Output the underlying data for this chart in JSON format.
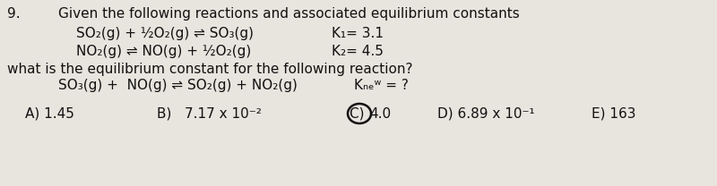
{
  "question_number": "9.",
  "header": "Given the following reactions and associated equilibrium constants",
  "reaction1": "SO₂(g) + ½O₂(g) ⇌ SO₃(g)",
  "k1": "K₁= 3.1",
  "reaction2": "NO₂(g) ⇌ NO(g) + ½O₂(g)",
  "k2": "K₂= 4.5",
  "question": "what is the equilibrium constant for the following reaction?",
  "reaction_new": "SO₃(g) +  NO(g) ⇌ SO₂(g) + NO₂(g)",
  "k_new": "Kₙₑʷ = ?",
  "answer_a": "A) 1.45",
  "answer_b": "B)   7.17 x 10⁻²",
  "answer_c": "C) ",
  "answer_c2": "4.0",
  "answer_d": "D) 6.89 x 10⁻¹",
  "answer_e": "E) 163",
  "bg_color": "#e8e4de",
  "text_color": "#111111",
  "circle_color": "#111111",
  "fontsize": 11,
  "fontsize_small": 10
}
